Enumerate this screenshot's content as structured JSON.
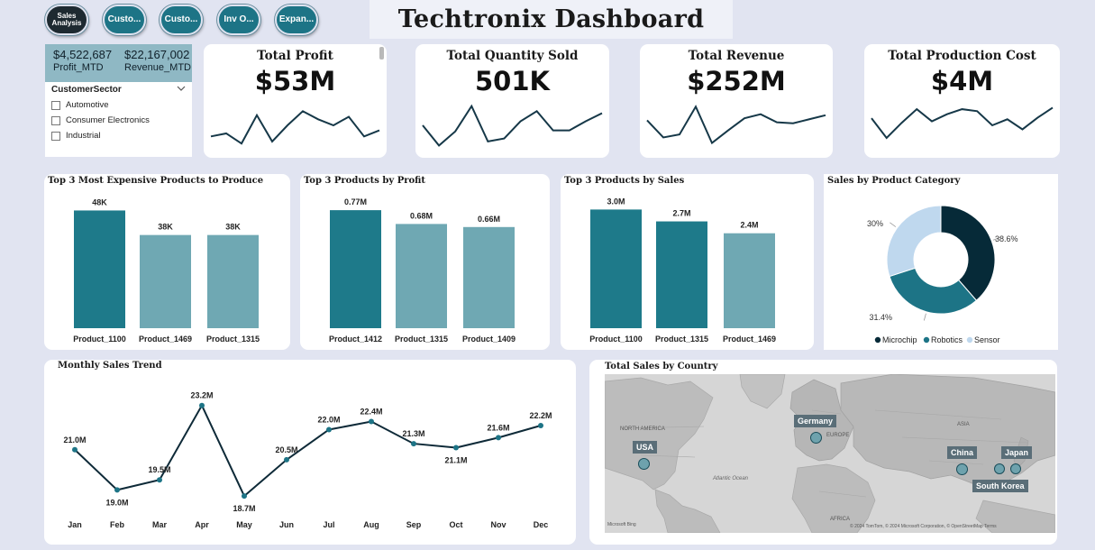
{
  "nav": [
    "Sales Analysis",
    "Custo...",
    "Custo...",
    "Inv O...",
    "Expan..."
  ],
  "title": "Techtronix Dashboard",
  "mtd": {
    "profit_value": "$4,522,687",
    "profit_label": "Profit_MTD",
    "revenue_value": "$22,167,002",
    "revenue_label": "Revenue_MTD"
  },
  "slicer": {
    "title": "CustomerSector",
    "options": [
      "Automotive",
      "Consumer Electronics",
      "Industrial"
    ]
  },
  "kpis": [
    {
      "title": "Total Profit",
      "value": "$53M",
      "trend": [
        0.72,
        0.66,
        0.86,
        0.3,
        0.82,
        0.5,
        0.22,
        0.38,
        0.5,
        0.33,
        0.72,
        0.6
      ]
    },
    {
      "title": "Total Quantity Sold",
      "value": "501K",
      "trend": [
        0.5,
        0.9,
        0.62,
        0.12,
        0.82,
        0.76,
        0.42,
        0.22,
        0.6,
        0.6,
        0.42,
        0.26
      ]
    },
    {
      "title": "Total Revenue",
      "value": "$252M",
      "trend": [
        0.4,
        0.74,
        0.68,
        0.13,
        0.85,
        0.6,
        0.36,
        0.28,
        0.44,
        0.46,
        0.38,
        0.3
      ]
    },
    {
      "title": "Total Production Cost",
      "value": "$4M",
      "trend": [
        0.36,
        0.75,
        0.45,
        0.18,
        0.42,
        0.28,
        0.18,
        0.22,
        0.5,
        0.38,
        0.58,
        0.35,
        0.15
      ]
    }
  ],
  "colors": {
    "dark": "#1e7a8a",
    "light": "#6fa8b3",
    "navy": "#0e2a38",
    "teal": "#1d7486",
    "pale": "#bfd8ee"
  },
  "chart_data": [
    {
      "type": "bar",
      "title": "Top 3 Most Expensive Products to Produce",
      "categories": [
        "Product_1100",
        "Product_1469",
        "Product_1315"
      ],
      "values": [
        48,
        38,
        38
      ],
      "labels": [
        "48K",
        "38K",
        "38K"
      ],
      "ylim": [
        0,
        50
      ]
    },
    {
      "type": "bar",
      "title": "Top 3 Products by Profit",
      "categories": [
        "Product_1412",
        "Product_1315",
        "Product_1409"
      ],
      "values": [
        0.77,
        0.68,
        0.66
      ],
      "labels": [
        "0.77M",
        "0.68M",
        "0.66M"
      ],
      "ylim": [
        0,
        0.8
      ]
    },
    {
      "type": "bar",
      "title": "Top 3 Products by Sales",
      "categories": [
        "Product_1100",
        "Product_1315",
        "Product_1469"
      ],
      "values": [
        3.0,
        2.7,
        2.4
      ],
      "labels": [
        "3.0M",
        "2.7M",
        "2.4M"
      ],
      "ylim": [
        0,
        3.1
      ]
    },
    {
      "type": "pie",
      "title": "Sales by Product Category",
      "slices": [
        {
          "name": "Microchip",
          "value": 38.6,
          "label": "38.6%",
          "color": "#062a38"
        },
        {
          "name": "Robotics",
          "value": 31.4,
          "label": "31.4%",
          "color": "#1d7486"
        },
        {
          "name": "Sensor",
          "value": 30.0,
          "label": "30%",
          "color": "#bfd8ee"
        }
      ]
    },
    {
      "type": "line",
      "title": "Monthly Sales Trend",
      "x": [
        "Jan",
        "Feb",
        "Mar",
        "Apr",
        "May",
        "Jun",
        "Jul",
        "Aug",
        "Sep",
        "Oct",
        "Nov",
        "Dec"
      ],
      "values": [
        21.0,
        19.0,
        19.5,
        23.2,
        18.7,
        20.5,
        22.0,
        22.4,
        21.3,
        21.1,
        21.6,
        22.2
      ],
      "labels": [
        "21.0M",
        "19.0M",
        "19.5M",
        "23.2M",
        "18.7M",
        "20.5M",
        "22.0M",
        "22.4M",
        "21.3M",
        "21.1M",
        "21.6M",
        "22.2M"
      ],
      "ylim": [
        18.3,
        23.5
      ]
    }
  ],
  "map": {
    "title": "Total Sales by Country",
    "countries": [
      "Germany",
      "USA",
      "China",
      "Japan",
      "South Korea"
    ],
    "regions": [
      "NORTH AMERICA",
      "EUROPE",
      "ASIA",
      "AFRICA",
      "Atlantic Ocean"
    ],
    "attribution": "© 2024 TomTom, © 2024 Microsoft Corporation, © OpenStreetMap  Terms",
    "brand": "Microsoft Bing"
  }
}
